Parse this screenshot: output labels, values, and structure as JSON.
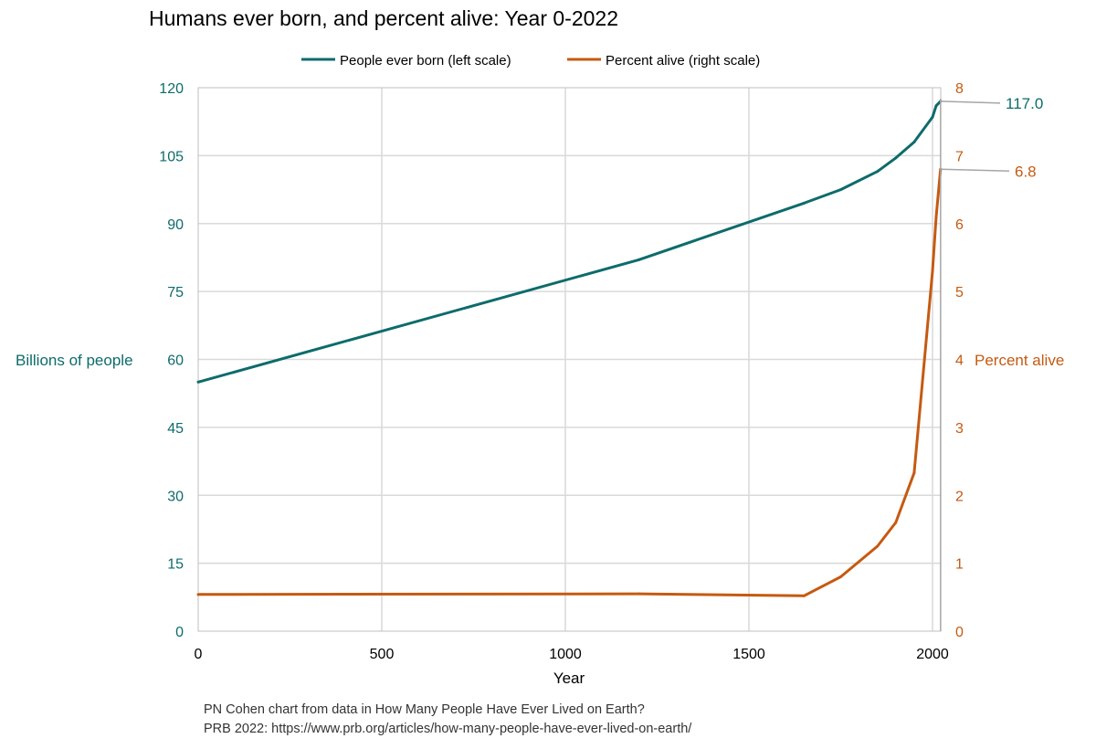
{
  "chart_data": {
    "type": "line",
    "title": "Humans ever born, and percent alive: Year 0-2022",
    "xlabel": "Year",
    "ylabel": "Billions of people",
    "y2label": "Percent alive",
    "xlim": [
      0,
      2022
    ],
    "ylim": [
      0,
      120
    ],
    "y2lim": [
      0,
      8
    ],
    "x_ticks": [
      0,
      500,
      1000,
      1500,
      2000
    ],
    "x_tick_labels": [
      "0",
      "500",
      "1000",
      "1500",
      "2000"
    ],
    "y_ticks": [
      0,
      15,
      30,
      45,
      60,
      75,
      90,
      105,
      120
    ],
    "y_tick_labels": [
      "0",
      "15",
      "30",
      "45",
      "60",
      "75",
      "90",
      "105",
      "120"
    ],
    "y2_ticks": [
      0,
      1,
      2,
      3,
      4,
      5,
      6,
      7,
      8
    ],
    "y2_tick_labels": [
      "0",
      "1",
      "2",
      "3",
      "4",
      "5",
      "6",
      "7",
      "8"
    ],
    "grid": true,
    "legend_position": "top-center",
    "series": [
      {
        "name": "People ever born (left scale)",
        "axis": "left",
        "color": "#0e6b6b",
        "x": [
          0,
          1200,
          1650,
          1750,
          1850,
          1900,
          1950,
          2000,
          2010,
          2022
        ],
        "y": [
          55,
          82,
          94.5,
          97.5,
          101.5,
          104.5,
          108,
          113.5,
          116,
          117.0
        ],
        "end_label": "117.0"
      },
      {
        "name": "Percent alive (right scale)",
        "axis": "right",
        "color": "#c55a11",
        "x": [
          0,
          1200,
          1650,
          1750,
          1850,
          1900,
          1950,
          2000,
          2010,
          2022
        ],
        "y": [
          0.54,
          0.55,
          0.52,
          0.8,
          1.25,
          1.6,
          2.33,
          5.3,
          6.1,
          6.8
        ],
        "end_label": "6.8"
      }
    ],
    "source_lines": [
      "PN Cohen chart from data in How Many People Have Ever Lived on Earth?",
      "PRB 2022: https://www.prb.org/articles/how-many-people-have-ever-lived-on-earth/"
    ]
  }
}
